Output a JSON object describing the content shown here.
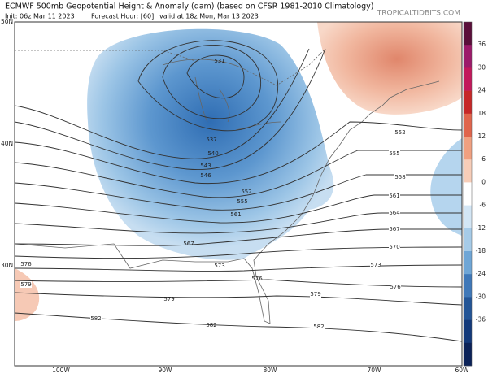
{
  "header": {
    "title": "ECMWF 500mb Geopotential Height & Anomaly (dam) (based on CFSR 1981-2010 Climatology)",
    "init": "Init: 06z Mar 11 2023",
    "forecast_hour": "Forecast Hour: [60]",
    "valid": "valid at 18z Mon, Mar 13 2023",
    "source": "TROPICALTIDBITS.COM"
  },
  "latitude_labels": [
    "50N",
    "40N",
    "30N"
  ],
  "longitude_labels": [
    "100W",
    "90W",
    "80W",
    "70W",
    "60W"
  ],
  "colorbar": {
    "labels": [
      36,
      30,
      24,
      18,
      12,
      6,
      0,
      -6,
      -12,
      -18,
      -24,
      -30,
      -36
    ]
  },
  "contour_labels": [
    531,
    537,
    540,
    543,
    546,
    552,
    555,
    561,
    567,
    573,
    576,
    579,
    582,
    552,
    555,
    558,
    561,
    564,
    567,
    570,
    573,
    576,
    579,
    582,
    576,
    579,
    582
  ]
}
